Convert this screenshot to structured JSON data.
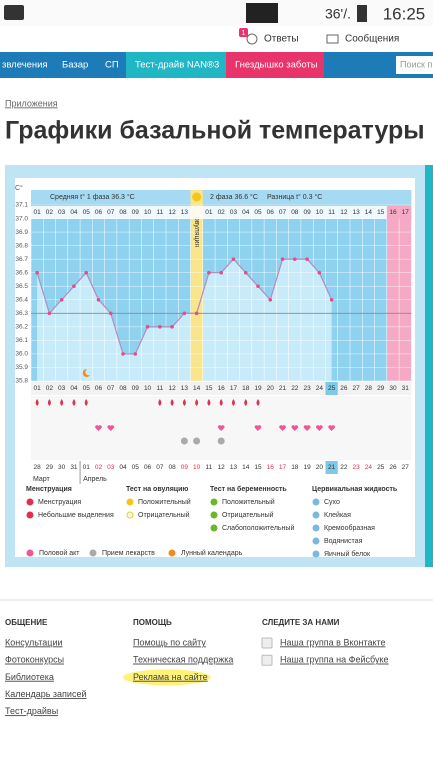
{
  "status_bar": {
    "battery": "36'/.",
    "time": "16:25"
  },
  "top_bar": {
    "badge": "1",
    "answers": "Ответы",
    "messages": "Сообщения"
  },
  "nav": {
    "items": [
      "звлечения",
      "Базар",
      "СП",
      "Тест-драйв NAN®3",
      "Гнездышко заботы"
    ],
    "search": "Поиск п"
  },
  "breadcrumb": "Приложения",
  "title": "Графики базальной температуры",
  "chart_data": {
    "type": "line",
    "y_axis_label": "C°",
    "ylim": [
      35.8,
      37.1
    ],
    "yticks": [
      35.8,
      35.9,
      {
        "value": 36,
        "label": "36.0"
      },
      36.1,
      36.2,
      36.3,
      36.4,
      36.5,
      36.6,
      36.7,
      36.8,
      36.9,
      {
        "value": 37,
        "label": "37.0"
      },
      37.1
    ],
    "phase1_summary": "Средняя t° 1 фаза 36.3 °C",
    "phase2_summary": "2 фаза 36.6 °C",
    "difference": "Разница t° 0.3 °C",
    "ovulation_label": "овуляция",
    "phase_days": [
      "01",
      "02",
      "03",
      "04",
      "05",
      "06",
      "07",
      "08",
      "09",
      "10",
      "11",
      "12",
      "13",
      null,
      "01",
      "02",
      "03",
      "04",
      "05",
      "06",
      "07",
      "08",
      "09",
      "10",
      "11",
      "12",
      "13",
      "14",
      "15",
      "16",
      "17"
    ],
    "categories": [
      "01",
      "02",
      "03",
      "04",
      "05",
      "06",
      "07",
      "08",
      "09",
      "10",
      "11",
      "12",
      "13",
      "14",
      "15",
      "16",
      "17",
      "18",
      "19",
      "20",
      "21",
      "22",
      "23",
      "24",
      "25",
      "26",
      "27",
      "28",
      "29",
      "30",
      "31"
    ],
    "dates": [
      "28",
      "29",
      "30",
      "31",
      "01",
      "02",
      "03",
      "04",
      "05",
      "06",
      "07",
      "08",
      "09",
      "10",
      "11",
      "12",
      "13",
      "14",
      "15",
      "16",
      "17",
      "18",
      "19",
      "20",
      "21",
      "22",
      "23",
      "24",
      "25",
      "26",
      "27"
    ],
    "months": [
      "Март",
      "Апрель"
    ],
    "values": [
      36.6,
      36.3,
      36.4,
      36.5,
      36.6,
      36.4,
      36.3,
      36.0,
      36.0,
      36.2,
      36.2,
      36.2,
      36.3,
      36.3,
      36.6,
      36.6,
      36.7,
      36.6,
      36.5,
      36.4,
      36.7,
      36.7,
      36.7,
      36.6,
      36.4,
      null,
      null,
      null,
      null,
      null,
      null
    ],
    "coverline": 36.3,
    "line_color": "#b48cc0",
    "point_color": "#e0508a",
    "menstruation_days": [
      1,
      2,
      3,
      4,
      5,
      11,
      12,
      13,
      14,
      15,
      16,
      17,
      18,
      19
    ],
    "intercourse_days": [
      6,
      7,
      16,
      19,
      21,
      22,
      23,
      24,
      25
    ],
    "medication_days": [
      13,
      14,
      16
    ],
    "moon_days": [
      5
    ]
  },
  "legend": {
    "groups": [
      {
        "title": "Менструация",
        "items": [
          "Менструация",
          "Небольшие выделения"
        ]
      },
      {
        "title": "Тест на овуляцию",
        "items": [
          "Положительный",
          "Отрицательный"
        ]
      },
      {
        "title": "Тест на беременность",
        "items": [
          "Положительный",
          "Отрицательный",
          "Слабоположительный"
        ]
      },
      {
        "title": "Цервикальная жидкость",
        "items": [
          "Сухо",
          "Клейкая",
          "Кремообразная",
          "Водянистая",
          "Яичный белок"
        ]
      }
    ],
    "bottom": [
      "Половой акт",
      "Прием лекарств",
      "Лунный календарь"
    ]
  },
  "footer": {
    "columns": [
      {
        "title": "ОБЩЕНИЕ",
        "items": [
          "Консультации",
          "Фотоконкурсы",
          "Библиотека",
          "Календарь записей",
          "Тест-драйвы"
        ]
      },
      {
        "title": "ПОМОЩЬ",
        "items": [
          "Помощь по сайту",
          "Техническая поддержка",
          "Реклама на сайте"
        ]
      },
      {
        "title": "СЛЕДИТЕ ЗА НАМИ",
        "items": [
          "Наша группа в Вконтакте",
          "Наша группа на Фейсбуке"
        ]
      }
    ]
  }
}
